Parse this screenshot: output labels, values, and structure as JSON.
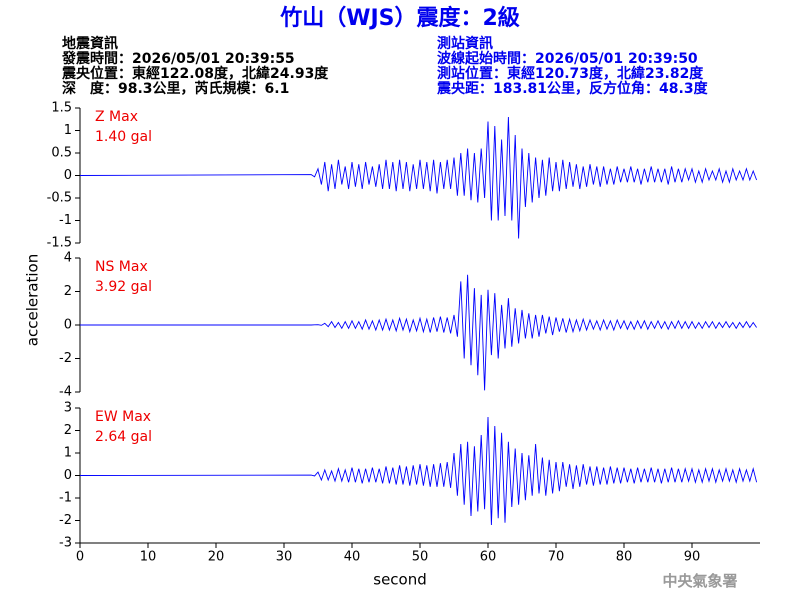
{
  "header": {
    "title": "竹山（WJS）震度：2級",
    "left": [
      "地震資訊",
      "發震時間：2026/05/01 20:39:55",
      "震央位置：東經122.08度，北緯24.93度",
      "深　度：98.3公里，芮氏規模：6.1"
    ],
    "right": [
      "測站資訊",
      "波線起始時間：2026/05/01 20:39:50",
      "測站位置：東經120.73度，北緯23.82度",
      "震央距：183.81公里，反方位角：48.3度"
    ]
  },
  "footer": "中央氣象署",
  "chart_data": {
    "type": "line",
    "ylabel": "acceleration",
    "xlabel": "second",
    "xlim": [
      0,
      100
    ],
    "xticks": [
      0,
      10,
      20,
      30,
      40,
      50,
      60,
      70,
      80,
      90
    ],
    "x": [
      0,
      34,
      34.5,
      35,
      35.5,
      36,
      36.5,
      37,
      37.5,
      38,
      38.5,
      39,
      39.5,
      40,
      40.5,
      41,
      41.5,
      42,
      42.5,
      43,
      43.5,
      44,
      44.5,
      45,
      45.5,
      46,
      46.5,
      47,
      47.5,
      48,
      48.5,
      49,
      49.5,
      50,
      50.5,
      51,
      51.5,
      52,
      52.5,
      53,
      53.5,
      54,
      54.5,
      55,
      55.5,
      56,
      56.5,
      57,
      57.5,
      58,
      58.5,
      59,
      59.5,
      60,
      60.5,
      61,
      61.5,
      62,
      62.5,
      63,
      63.5,
      64,
      64.5,
      65,
      65.5,
      66,
      66.5,
      67,
      67.5,
      68,
      68.5,
      69,
      69.5,
      70,
      70.5,
      71,
      71.5,
      72,
      72.5,
      73,
      73.5,
      74,
      74.5,
      75,
      75.5,
      76,
      76.5,
      77,
      77.5,
      78,
      78.5,
      79,
      79.5,
      80,
      80.5,
      81,
      81.5,
      82,
      82.5,
      83,
      83.5,
      84,
      84.5,
      85,
      85.5,
      86,
      86.5,
      87,
      87.5,
      88,
      88.5,
      89,
      89.5,
      90,
      90.5,
      91,
      91.5,
      92,
      92.5,
      93,
      93.5,
      94,
      94.5,
      95,
      95.5,
      96,
      96.5,
      97,
      97.5,
      98,
      98.5,
      99,
      99.5
    ],
    "series": [
      {
        "name": "Z Max",
        "max_label": "1.40 gal",
        "color": "#0000ff",
        "label_color": "#ee0000",
        "ylim": [
          -1.5,
          1.5
        ],
        "yticks": [
          1.5,
          1,
          0.5,
          0,
          -0.5,
          -1,
          -1.5
        ],
        "values": [
          0,
          0.02,
          -0.03,
          0.15,
          -0.2,
          0.3,
          -0.35,
          0.25,
          -0.3,
          0.35,
          -0.2,
          0.2,
          -0.3,
          0.3,
          -0.25,
          0.25,
          -0.3,
          0.3,
          -0.2,
          0.2,
          -0.25,
          0.25,
          -0.3,
          0.35,
          -0.3,
          0.3,
          -0.35,
          0.35,
          -0.3,
          0.3,
          -0.35,
          0.25,
          -0.3,
          0.35,
          -0.3,
          0.3,
          -0.35,
          0.35,
          -0.4,
          0.3,
          -0.3,
          0.35,
          -0.3,
          0.4,
          -0.45,
          0.5,
          -0.45,
          0.6,
          -0.55,
          0.5,
          -0.6,
          0.6,
          -0.5,
          1.2,
          -1.0,
          1.1,
          -1.0,
          0.8,
          -0.9,
          1.3,
          -1.0,
          0.9,
          -1.4,
          0.6,
          -0.7,
          0.5,
          -0.6,
          0.4,
          -0.5,
          0.35,
          -0.45,
          0.4,
          -0.35,
          0.3,
          -0.35,
          0.35,
          -0.3,
          0.3,
          -0.25,
          0.25,
          -0.3,
          0.2,
          -0.25,
          0.25,
          -0.2,
          0.2,
          -0.25,
          0.2,
          -0.2,
          0.15,
          -0.2,
          0.2,
          -0.15,
          0.15,
          -0.15,
          0.2,
          -0.15,
          0.15,
          -0.2,
          0.15,
          -0.15,
          0.2,
          -0.15,
          0.15,
          -0.15,
          0.15,
          -0.2,
          0.2,
          -0.15,
          0.15,
          -0.15,
          0.15,
          -0.1,
          0.15,
          -0.15,
          0.1,
          -0.15,
          0.15,
          -0.1,
          0.1,
          -0.1,
          0.15,
          -0.15,
          0.1,
          -0.15,
          0.15,
          -0.1,
          0.1,
          -0.1,
          0.15,
          -0.1,
          0.1,
          -0.1
        ]
      },
      {
        "name": "NS Max",
        "max_label": "3.92 gal",
        "color": "#0000ff",
        "label_color": "#ee0000",
        "ylim": [
          -4,
          4
        ],
        "yticks": [
          4,
          2,
          0,
          -2,
          -4
        ],
        "values": [
          0,
          0,
          0.01,
          0.02,
          -0.02,
          0.1,
          -0.1,
          0.2,
          -0.15,
          0.15,
          -0.2,
          0.2,
          -0.2,
          0.25,
          -0.2,
          0.2,
          -0.25,
          0.3,
          -0.25,
          0.25,
          -0.3,
          0.3,
          -0.3,
          0.35,
          -0.3,
          0.3,
          -0.35,
          0.4,
          -0.3,
          0.35,
          -0.4,
          0.3,
          -0.35,
          0.4,
          -0.4,
          0.35,
          -0.45,
          0.45,
          -0.4,
          0.5,
          -0.45,
          0.45,
          -0.5,
          0.6,
          -0.7,
          2.6,
          -2.0,
          3.0,
          -2.4,
          2.2,
          -3.0,
          1.8,
          -3.9,
          2.1,
          -1.8,
          1.9,
          -2.0,
          1.2,
          -1.4,
          1.6,
          -1.3,
          1.0,
          -1.1,
          0.9,
          -0.8,
          0.7,
          -0.8,
          0.6,
          -0.7,
          0.6,
          -0.5,
          0.5,
          -0.6,
          0.45,
          -0.4,
          0.4,
          -0.45,
          0.35,
          -0.4,
          0.3,
          -0.35,
          0.35,
          -0.3,
          0.3,
          -0.25,
          0.25,
          -0.3,
          0.3,
          -0.25,
          0.25,
          -0.3,
          0.3,
          -0.2,
          0.25,
          -0.25,
          0.2,
          -0.25,
          0.25,
          -0.2,
          0.25,
          -0.25,
          0.2,
          -0.2,
          0.25,
          -0.2,
          0.2,
          -0.25,
          0.2,
          -0.2,
          0.25,
          -0.2,
          0.2,
          -0.2,
          0.2,
          -0.2,
          0.15,
          -0.2,
          0.2,
          -0.15,
          0.2,
          -0.2,
          0.15,
          -0.15,
          0.2,
          -0.15,
          0.15,
          -0.2,
          0.15,
          -0.15,
          0.2,
          -0.15,
          0.15,
          -0.15
        ]
      },
      {
        "name": "EW Max",
        "max_label": "2.64 gal",
        "color": "#0000ff",
        "label_color": "#ee0000",
        "ylim": [
          -3,
          3
        ],
        "yticks": [
          3,
          2,
          1,
          0,
          -1,
          -2,
          -3
        ],
        "values": [
          0,
          0.02,
          -0.02,
          0.15,
          -0.2,
          0.25,
          -0.2,
          0.2,
          -0.25,
          0.3,
          -0.25,
          0.25,
          -0.3,
          0.35,
          -0.3,
          0.3,
          -0.35,
          0.3,
          -0.3,
          0.35,
          -0.3,
          0.3,
          -0.35,
          0.4,
          -0.35,
          0.35,
          -0.4,
          0.45,
          -0.4,
          0.4,
          -0.45,
          0.45,
          -0.4,
          0.5,
          -0.45,
          0.45,
          -0.5,
          0.5,
          -0.5,
          0.55,
          -0.5,
          0.6,
          -0.55,
          1.0,
          -0.9,
          1.4,
          -1.3,
          1.5,
          -1.8,
          1.3,
          -1.6,
          1.8,
          -1.5,
          2.6,
          -2.2,
          2.2,
          -1.9,
          1.9,
          -2.1,
          1.5,
          -1.4,
          1.2,
          -1.3,
          1.0,
          -1.1,
          0.9,
          -0.9,
          1.4,
          -0.8,
          0.8,
          -0.9,
          0.7,
          -0.8,
          0.6,
          -0.7,
          0.6,
          -0.5,
          0.5,
          -0.6,
          0.45,
          -0.5,
          0.5,
          -0.4,
          0.4,
          -0.45,
          0.4,
          -0.4,
          0.35,
          -0.4,
          0.4,
          -0.35,
          0.35,
          -0.35,
          0.35,
          -0.3,
          0.3,
          -0.35,
          0.35,
          -0.3,
          0.3,
          -0.3,
          0.35,
          -0.3,
          0.3,
          -0.35,
          0.3,
          -0.3,
          0.35,
          -0.3,
          0.3,
          -0.3,
          0.3,
          -0.25,
          0.3,
          -0.3,
          0.25,
          -0.3,
          0.3,
          -0.25,
          0.3,
          -0.3,
          0.25,
          -0.25,
          0.3,
          -0.25,
          0.25,
          -0.3,
          0.3,
          -0.25,
          0.25,
          -0.25,
          0.3,
          -0.3
        ]
      }
    ]
  }
}
